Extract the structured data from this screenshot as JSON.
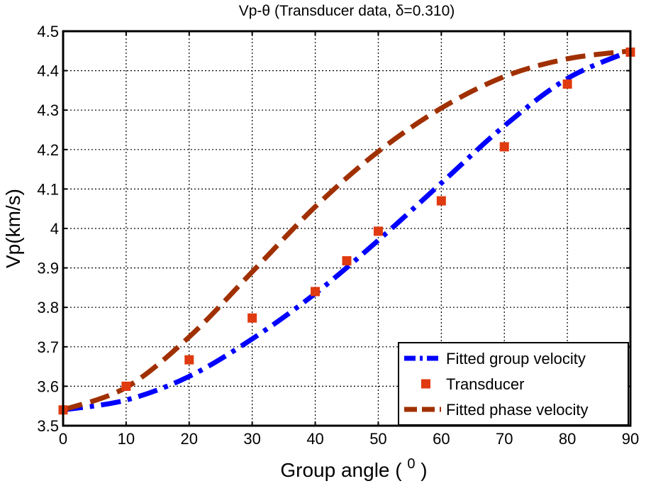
{
  "chart_data": {
    "type": "line",
    "title": "Vp-θ (Transducer data, δ=0.310)",
    "xlabel": "Group angle (",
    "xlabel_superscript": "0",
    "xlabel_suffix": " )",
    "ylabel": "Vp(km/s)",
    "xlim": [
      0,
      90
    ],
    "ylim": [
      3.5,
      4.5
    ],
    "xticks": [
      0,
      10,
      20,
      30,
      40,
      50,
      60,
      70,
      80,
      90
    ],
    "yticks": [
      3.5,
      3.6,
      3.7,
      3.8,
      3.9,
      4.0,
      4.1,
      4.2,
      4.3,
      4.4,
      4.5
    ],
    "ytick_labels": [
      "3.5",
      "3.6",
      "3.7",
      "3.8",
      "3.9",
      "4",
      "4.1",
      "4.2",
      "4.3",
      "4.4",
      "4.5"
    ],
    "grid": true,
    "legend_position": "bottom-right",
    "series": [
      {
        "name": "Fitted group velocity",
        "style": "dash-dot",
        "color": "#0000ff",
        "x": [
          0,
          10,
          20,
          30,
          40,
          50,
          60,
          70,
          80,
          90
        ],
        "y": [
          3.54,
          3.565,
          3.625,
          3.72,
          3.835,
          3.97,
          4.115,
          4.26,
          4.38,
          4.45
        ]
      },
      {
        "name": "Transducer",
        "style": "marker",
        "color": "#e03a10",
        "x": [
          0,
          10,
          20,
          30,
          40,
          45,
          50,
          60,
          70,
          80,
          90
        ],
        "y": [
          3.54,
          3.6,
          3.667,
          3.773,
          3.84,
          3.918,
          3.993,
          4.07,
          4.207,
          4.366,
          4.447
        ]
      },
      {
        "name": "Fitted phase velocity",
        "style": "dash",
        "color": "#a03000",
        "x": [
          0,
          10,
          20,
          30,
          40,
          50,
          60,
          70,
          80,
          90
        ],
        "y": [
          3.54,
          3.597,
          3.725,
          3.89,
          4.055,
          4.195,
          4.305,
          4.385,
          4.43,
          4.45
        ]
      }
    ]
  }
}
